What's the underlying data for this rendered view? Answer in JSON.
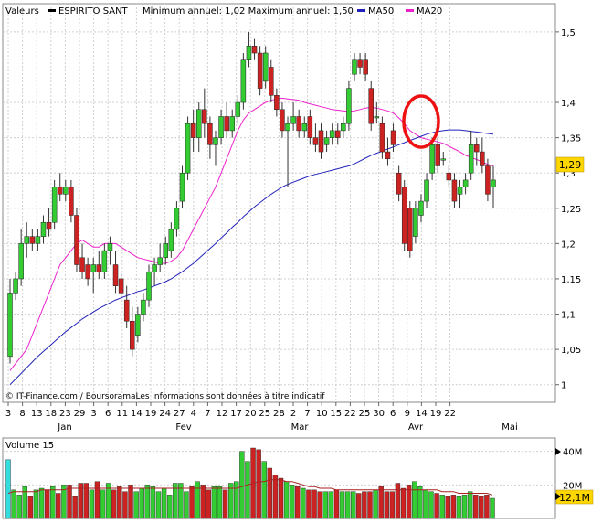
{
  "legend": {
    "prefix": "Valeurs",
    "name": "ESPIRITO SANT",
    "annual": "Minimum annuel: 1,02 Maximum annuel: 1,50",
    "ma50_label": "MA50",
    "ma20_label": "MA20"
  },
  "source": "© IT-Finance.com / BoursoramaLes informations sont données à titre indicatif",
  "colors": {
    "up": "#33cc33",
    "down": "#cc2222",
    "ma50": "#2222bb",
    "ma20": "#ee22cc",
    "vol_ma": "#aa2222",
    "grid": "#d0d0d0",
    "badge": "#ffd700",
    "annotation": "#ee1111"
  },
  "chart_data": {
    "type": "candlestick",
    "ylim": [
      0.975,
      1.54
    ],
    "yticks": [
      1,
      1.05,
      1.1,
      1.15,
      1.2,
      1.25,
      1.3,
      1.35,
      1.4,
      1.5
    ],
    "ytick_labels": [
      "1",
      "1,05",
      "1,1",
      "1,15",
      "1,2",
      "1,25",
      "1,3",
      "1,35",
      "1,4",
      "1,5"
    ],
    "day_labels": [
      "3",
      "8",
      "13",
      "18",
      "23",
      "29",
      "3",
      "6",
      "11",
      "14",
      "19",
      "24",
      "27",
      "4",
      "7",
      "12",
      "17",
      "20",
      "25",
      "28",
      "2",
      "7",
      "10",
      "15",
      "22",
      "25",
      "30",
      "6",
      "9",
      "14",
      "19",
      "22"
    ],
    "month_labels": [
      "Jan",
      "Fev",
      "Mar",
      "Avr",
      "Mai"
    ],
    "last_value": "1,29",
    "candles": [
      {
        "o": 1.04,
        "h": 1.15,
        "l": 1.03,
        "c": 1.13
      },
      {
        "o": 1.13,
        "h": 1.16,
        "l": 1.12,
        "c": 1.15
      },
      {
        "o": 1.15,
        "h": 1.22,
        "l": 1.14,
        "c": 1.2
      },
      {
        "o": 1.2,
        "h": 1.23,
        "l": 1.18,
        "c": 1.21
      },
      {
        "o": 1.21,
        "h": 1.22,
        "l": 1.19,
        "c": 1.2
      },
      {
        "o": 1.2,
        "h": 1.22,
        "l": 1.19,
        "c": 1.21
      },
      {
        "o": 1.21,
        "h": 1.24,
        "l": 1.2,
        "c": 1.23
      },
      {
        "o": 1.23,
        "h": 1.25,
        "l": 1.21,
        "c": 1.22
      },
      {
        "o": 1.23,
        "h": 1.29,
        "l": 1.22,
        "c": 1.28
      },
      {
        "o": 1.28,
        "h": 1.3,
        "l": 1.26,
        "c": 1.27
      },
      {
        "o": 1.27,
        "h": 1.29,
        "l": 1.26,
        "c": 1.28
      },
      {
        "o": 1.28,
        "h": 1.29,
        "l": 1.23,
        "c": 1.24
      },
      {
        "o": 1.24,
        "h": 1.25,
        "l": 1.16,
        "c": 1.17
      },
      {
        "o": 1.18,
        "h": 1.2,
        "l": 1.15,
        "c": 1.16
      },
      {
        "o": 1.17,
        "h": 1.18,
        "l": 1.14,
        "c": 1.15
      },
      {
        "o": 1.16,
        "h": 1.18,
        "l": 1.13,
        "c": 1.17
      },
      {
        "o": 1.17,
        "h": 1.19,
        "l": 1.15,
        "c": 1.16
      },
      {
        "o": 1.16,
        "h": 1.2,
        "l": 1.15,
        "c": 1.19
      },
      {
        "o": 1.19,
        "h": 1.21,
        "l": 1.17,
        "c": 1.2
      },
      {
        "o": 1.17,
        "h": 1.19,
        "l": 1.13,
        "c": 1.14
      },
      {
        "o": 1.15,
        "h": 1.16,
        "l": 1.12,
        "c": 1.13
      },
      {
        "o": 1.12,
        "h": 1.14,
        "l": 1.08,
        "c": 1.09
      },
      {
        "o": 1.09,
        "h": 1.11,
        "l": 1.04,
        "c": 1.05
      },
      {
        "o": 1.07,
        "h": 1.11,
        "l": 1.06,
        "c": 1.1
      },
      {
        "o": 1.1,
        "h": 1.13,
        "l": 1.09,
        "c": 1.12
      },
      {
        "o": 1.12,
        "h": 1.17,
        "l": 1.11,
        "c": 1.16
      },
      {
        "o": 1.16,
        "h": 1.18,
        "l": 1.14,
        "c": 1.17
      },
      {
        "o": 1.17,
        "h": 1.2,
        "l": 1.16,
        "c": 1.18
      },
      {
        "o": 1.18,
        "h": 1.21,
        "l": 1.17,
        "c": 1.2
      },
      {
        "o": 1.19,
        "h": 1.23,
        "l": 1.18,
        "c": 1.22
      },
      {
        "o": 1.22,
        "h": 1.26,
        "l": 1.21,
        "c": 1.25
      },
      {
        "o": 1.26,
        "h": 1.31,
        "l": 1.25,
        "c": 1.3
      },
      {
        "o": 1.3,
        "h": 1.38,
        "l": 1.29,
        "c": 1.37
      },
      {
        "o": 1.37,
        "h": 1.39,
        "l": 1.33,
        "c": 1.35
      },
      {
        "o": 1.35,
        "h": 1.4,
        "l": 1.33,
        "c": 1.39
      },
      {
        "o": 1.39,
        "h": 1.42,
        "l": 1.35,
        "c": 1.37
      },
      {
        "o": 1.37,
        "h": 1.38,
        "l": 1.32,
        "c": 1.34
      },
      {
        "o": 1.34,
        "h": 1.36,
        "l": 1.31,
        "c": 1.35
      },
      {
        "o": 1.35,
        "h": 1.39,
        "l": 1.34,
        "c": 1.38
      },
      {
        "o": 1.38,
        "h": 1.4,
        "l": 1.35,
        "c": 1.36
      },
      {
        "o": 1.36,
        "h": 1.39,
        "l": 1.35,
        "c": 1.38
      },
      {
        "o": 1.38,
        "h": 1.41,
        "l": 1.37,
        "c": 1.4
      },
      {
        "o": 1.4,
        "h": 1.47,
        "l": 1.39,
        "c": 1.46
      },
      {
        "o": 1.46,
        "h": 1.5,
        "l": 1.45,
        "c": 1.48
      },
      {
        "o": 1.48,
        "h": 1.49,
        "l": 1.46,
        "c": 1.47
      },
      {
        "o": 1.47,
        "h": 1.48,
        "l": 1.41,
        "c": 1.42
      },
      {
        "o": 1.43,
        "h": 1.48,
        "l": 1.42,
        "c": 1.47
      },
      {
        "o": 1.45,
        "h": 1.46,
        "l": 1.4,
        "c": 1.41
      },
      {
        "o": 1.41,
        "h": 1.42,
        "l": 1.38,
        "c": 1.39
      },
      {
        "o": 1.39,
        "h": 1.4,
        "l": 1.35,
        "c": 1.36
      },
      {
        "o": 1.36,
        "h": 1.38,
        "l": 1.28,
        "c": 1.37
      },
      {
        "o": 1.37,
        "h": 1.4,
        "l": 1.36,
        "c": 1.38
      },
      {
        "o": 1.38,
        "h": 1.39,
        "l": 1.35,
        "c": 1.36
      },
      {
        "o": 1.36,
        "h": 1.38,
        "l": 1.35,
        "c": 1.37
      },
      {
        "o": 1.38,
        "h": 1.39,
        "l": 1.34,
        "c": 1.35
      },
      {
        "o": 1.35,
        "h": 1.37,
        "l": 1.33,
        "c": 1.34
      },
      {
        "o": 1.36,
        "h": 1.37,
        "l": 1.32,
        "c": 1.33
      },
      {
        "o": 1.34,
        "h": 1.36,
        "l": 1.33,
        "c": 1.35
      },
      {
        "o": 1.35,
        "h": 1.37,
        "l": 1.34,
        "c": 1.36
      },
      {
        "o": 1.36,
        "h": 1.37,
        "l": 1.34,
        "c": 1.35
      },
      {
        "o": 1.36,
        "h": 1.38,
        "l": 1.35,
        "c": 1.37
      },
      {
        "o": 1.37,
        "h": 1.43,
        "l": 1.36,
        "c": 1.42
      },
      {
        "o": 1.44,
        "h": 1.47,
        "l": 1.43,
        "c": 1.46
      },
      {
        "o": 1.46,
        "h": 1.47,
        "l": 1.44,
        "c": 1.45
      },
      {
        "o": 1.46,
        "h": 1.47,
        "l": 1.43,
        "c": 1.44
      },
      {
        "o": 1.42,
        "h": 1.43,
        "l": 1.36,
        "c": 1.37
      },
      {
        "o": 1.38,
        "h": 1.4,
        "l": 1.37,
        "c": 1.38
      },
      {
        "o": 1.37,
        "h": 1.38,
        "l": 1.32,
        "c": 1.33
      },
      {
        "o": 1.33,
        "h": 1.35,
        "l": 1.31,
        "c": 1.32
      },
      {
        "o": 1.36,
        "h": 1.37,
        "l": 1.33,
        "c": 1.34
      },
      {
        "o": 1.3,
        "h": 1.31,
        "l": 1.26,
        "c": 1.27
      },
      {
        "o": 1.28,
        "h": 1.29,
        "l": 1.19,
        "c": 1.2
      },
      {
        "o": 1.25,
        "h": 1.26,
        "l": 1.18,
        "c": 1.19
      },
      {
        "o": 1.21,
        "h": 1.26,
        "l": 1.2,
        "c": 1.25
      },
      {
        "o": 1.24,
        "h": 1.27,
        "l": 1.23,
        "c": 1.26
      },
      {
        "o": 1.26,
        "h": 1.3,
        "l": 1.25,
        "c": 1.29
      },
      {
        "o": 1.3,
        "h": 1.35,
        "l": 1.29,
        "c": 1.34
      },
      {
        "o": 1.34,
        "h": 1.35,
        "l": 1.3,
        "c": 1.31
      },
      {
        "o": 1.32,
        "h": 1.33,
        "l": 1.31,
        "c": 1.32
      },
      {
        "o": 1.3,
        "h": 1.31,
        "l": 1.28,
        "c": 1.29
      },
      {
        "o": 1.29,
        "h": 1.3,
        "l": 1.25,
        "c": 1.26
      },
      {
        "o": 1.27,
        "h": 1.29,
        "l": 1.25,
        "c": 1.28
      },
      {
        "o": 1.28,
        "h": 1.3,
        "l": 1.27,
        "c": 1.29
      },
      {
        "o": 1.3,
        "h": 1.36,
        "l": 1.29,
        "c": 1.34
      },
      {
        "o": 1.34,
        "h": 1.35,
        "l": 1.31,
        "c": 1.33
      },
      {
        "o": 1.33,
        "h": 1.35,
        "l": 1.3,
        "c": 1.31
      },
      {
        "o": 1.31,
        "h": 1.32,
        "l": 1.26,
        "c": 1.27
      },
      {
        "o": 1.28,
        "h": 1.31,
        "l": 1.25,
        "c": 1.29
      }
    ],
    "ma20": [
      1.02,
      1.03,
      1.04,
      1.05,
      1.07,
      1.09,
      1.11,
      1.13,
      1.15,
      1.17,
      1.18,
      1.19,
      1.2,
      1.205,
      1.2,
      1.195,
      1.195,
      1.2,
      1.2,
      1.2,
      1.195,
      1.19,
      1.185,
      1.18,
      1.178,
      1.176,
      1.174,
      1.172,
      1.172,
      1.175,
      1.18,
      1.19,
      1.205,
      1.22,
      1.235,
      1.25,
      1.265,
      1.28,
      1.3,
      1.32,
      1.34,
      1.36,
      1.375,
      1.385,
      1.39,
      1.395,
      1.4,
      1.403,
      1.405,
      1.406,
      1.405,
      1.404,
      1.403,
      1.4,
      1.398,
      1.396,
      1.394,
      1.392,
      1.39,
      1.389,
      1.388,
      1.387,
      1.388,
      1.39,
      1.392,
      1.393,
      1.392,
      1.39,
      1.388,
      1.385,
      1.378,
      1.37,
      1.36,
      1.355,
      1.35,
      1.348,
      1.346,
      1.344,
      1.342,
      1.338,
      1.334,
      1.33,
      1.325,
      1.322,
      1.319,
      1.316,
      1.312,
      1.31
    ],
    "ma50": [
      1.0,
      1.008,
      1.016,
      1.024,
      1.032,
      1.04,
      1.047,
      1.054,
      1.061,
      1.068,
      1.075,
      1.081,
      1.087,
      1.093,
      1.098,
      1.103,
      1.108,
      1.112,
      1.116,
      1.12,
      1.123,
      1.126,
      1.129,
      1.132,
      1.134,
      1.137,
      1.14,
      1.143,
      1.146,
      1.15,
      1.155,
      1.16,
      1.166,
      1.172,
      1.179,
      1.186,
      1.193,
      1.2,
      1.208,
      1.215,
      1.223,
      1.23,
      1.238,
      1.245,
      1.252,
      1.258,
      1.264,
      1.27,
      1.275,
      1.28,
      1.284,
      1.287,
      1.29,
      1.293,
      1.296,
      1.298,
      1.3,
      1.302,
      1.304,
      1.306,
      1.308,
      1.31,
      1.313,
      1.317,
      1.321,
      1.325,
      1.328,
      1.331,
      1.334,
      1.337,
      1.34,
      1.343,
      1.346,
      1.349,
      1.352,
      1.355,
      1.357,
      1.359,
      1.36,
      1.361,
      1.361,
      1.361,
      1.36,
      1.359,
      1.358,
      1.357,
      1.356,
      1.355
    ],
    "volume": {
      "label": "Volume 15",
      "ytick_labels": [
        "40M",
        "20M"
      ],
      "yticks": [
        40,
        20
      ],
      "ylim": [
        0,
        48
      ],
      "last_value": "12,1M",
      "values": [
        35,
        17,
        14,
        19,
        13,
        17,
        18,
        17,
        19,
        15,
        20,
        20,
        13,
        21,
        21,
        17,
        22,
        17,
        21,
        17,
        19,
        16,
        20,
        16,
        18,
        20,
        19,
        16,
        18,
        14,
        21,
        21,
        16,
        19,
        22,
        20,
        17,
        19,
        19,
        17,
        21,
        22,
        40,
        34,
        42,
        41,
        34,
        30,
        26,
        24,
        22,
        20,
        19,
        18,
        17,
        17,
        16,
        16,
        16,
        17,
        16,
        16,
        16,
        15,
        16,
        16,
        17,
        19,
        16,
        16,
        21,
        18,
        20,
        22,
        19,
        17,
        16,
        15,
        14,
        13,
        14,
        13,
        14,
        16,
        14,
        13,
        14,
        12
      ],
      "ma": [
        15,
        16,
        16,
        16,
        16,
        16,
        17,
        17,
        17,
        17,
        17,
        18,
        18,
        18,
        18,
        18,
        18,
        18,
        18,
        18,
        18,
        18,
        18,
        18,
        18,
        18,
        18,
        18,
        18,
        18,
        18,
        18,
        18,
        18,
        18,
        18,
        18,
        18,
        18,
        18,
        18,
        18,
        19,
        20,
        21,
        22,
        22,
        23,
        23,
        23,
        22,
        22,
        21,
        20,
        19,
        19,
        18,
        18,
        18,
        17,
        17,
        17,
        17,
        17,
        17,
        17,
        17,
        17,
        17,
        17,
        17,
        17,
        17,
        17,
        17,
        17,
        17,
        17,
        16,
        16,
        16,
        15,
        15,
        15,
        15,
        15,
        15,
        14
      ]
    }
  }
}
